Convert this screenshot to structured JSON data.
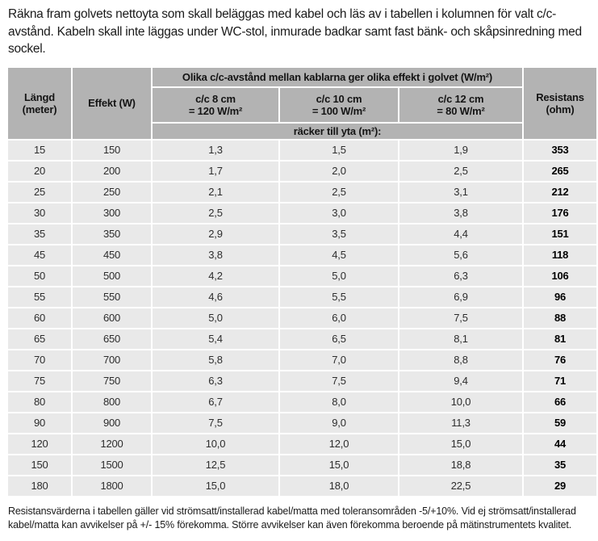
{
  "intro": {
    "text": "Räkna fram golvets nettoyta som skall beläggas med kabel och läs av i tabellen i kolumnen för valt c/c-avstånd. Kabeln skall inte läggas under WC-stol, inmurade badkar samt fast bänk- och skåpsinredning med sockel."
  },
  "table": {
    "header": {
      "length_line1": "Längd",
      "length_line2": "(meter)",
      "effect": "Effekt (W)",
      "group_title": "Olika c/c-avstånd mellan kablarna ger olika effekt i golvet (W/m²)",
      "cc_columns": [
        {
          "line1": "c/c 8 cm",
          "line2": "= 120 W/m²"
        },
        {
          "line1": "c/c 10 cm",
          "line2": "= 100 W/m²"
        },
        {
          "line1": "c/c 12 cm",
          "line2": "= 80 W/m²"
        }
      ],
      "area_note": "räcker till yta (m²):",
      "resistance_line1": "Resistans",
      "resistance_line2": "(ohm)"
    },
    "column_keys": [
      "length",
      "effect",
      "cc8",
      "cc10",
      "cc12",
      "resistance"
    ],
    "rows": [
      [
        "15",
        "150",
        "1,3",
        "1,5",
        "1,9",
        "353"
      ],
      [
        "20",
        "200",
        "1,7",
        "2,0",
        "2,5",
        "265"
      ],
      [
        "25",
        "250",
        "2,1",
        "2,5",
        "3,1",
        "212"
      ],
      [
        "30",
        "300",
        "2,5",
        "3,0",
        "3,8",
        "176"
      ],
      [
        "35",
        "350",
        "2,9",
        "3,5",
        "4,4",
        "151"
      ],
      [
        "45",
        "450",
        "3,8",
        "4,5",
        "5,6",
        "118"
      ],
      [
        "50",
        "500",
        "4,2",
        "5,0",
        "6,3",
        "106"
      ],
      [
        "55",
        "550",
        "4,6",
        "5,5",
        "6,9",
        "96"
      ],
      [
        "60",
        "600",
        "5,0",
        "6,0",
        "7,5",
        "88"
      ],
      [
        "65",
        "650",
        "5,4",
        "6,5",
        "8,1",
        "81"
      ],
      [
        "70",
        "700",
        "5,8",
        "7,0",
        "8,8",
        "76"
      ],
      [
        "75",
        "750",
        "6,3",
        "7,5",
        "9,4",
        "71"
      ],
      [
        "80",
        "800",
        "6,7",
        "8,0",
        "10,0",
        "66"
      ],
      [
        "90",
        "900",
        "7,5",
        "9,0",
        "11,3",
        "59"
      ],
      [
        "120",
        "1200",
        "10,0",
        "12,0",
        "15,0",
        "44"
      ],
      [
        "150",
        "1500",
        "12,5",
        "15,0",
        "18,8",
        "35"
      ],
      [
        "180",
        "1800",
        "15,0",
        "18,0",
        "22,5",
        "29"
      ]
    ]
  },
  "footnote": {
    "text": "Resistansvärderna i tabellen gäller vid strömsatt/installerad kabel/matta med toleransområden -5/+10%. Vid ej strömsatt/installerad kabel/matta kan avvikelser på +/- 15% förekomma. Större avvikelser kan även förekomma beroende på mätinstrumentets kvalitet."
  },
  "colors": {
    "header_background": "#b3b3b3",
    "row_background": "#e9e9e9",
    "separator": "#ffffff",
    "text": "#1a1a1a"
  }
}
